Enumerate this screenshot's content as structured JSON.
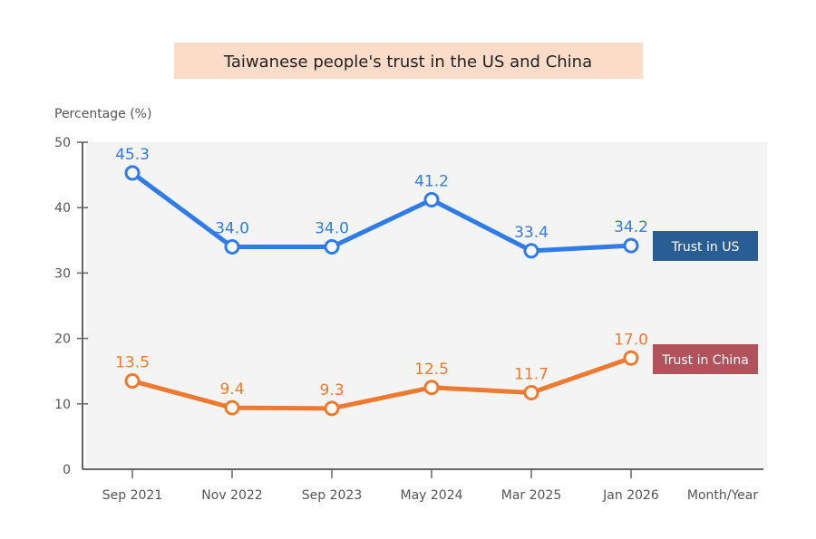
{
  "chart_data": {
    "type": "line",
    "title": "Taiwanese people's trust in the US and China",
    "xlabel": "Month/Year",
    "ylabel": "Percentage (%)",
    "categories": [
      "Sep 2021",
      "Nov 2022",
      "Sep 2023",
      "May 2024",
      "Mar 2025",
      "Jan 2026"
    ],
    "ylim": [
      0,
      50
    ],
    "yticks": [
      0,
      10,
      20,
      30,
      40,
      50
    ],
    "grid": false,
    "legend": "right",
    "series": [
      {
        "name": "Trust in US",
        "values": [
          45.3,
          34.0,
          34.0,
          41.2,
          33.4,
          34.2
        ],
        "labels": [
          "45.3",
          "34.0",
          "34.0",
          "41.2",
          "33.4",
          "34.2"
        ],
        "color": "#2f7be8",
        "legend_color": "#285e93"
      },
      {
        "name": "Trust in China",
        "values": [
          13.5,
          9.4,
          9.3,
          12.5,
          11.7,
          17.0
        ],
        "labels": [
          "13.5",
          "9.4",
          "9.3",
          "12.5",
          "11.7",
          "17.0"
        ],
        "color": "#ed7a30",
        "legend_color": "#b2525a"
      }
    ],
    "colors": {
      "title_bg": "#fbdcc8",
      "plot_bg": "#f4f4f4",
      "axis": "#666666"
    }
  }
}
